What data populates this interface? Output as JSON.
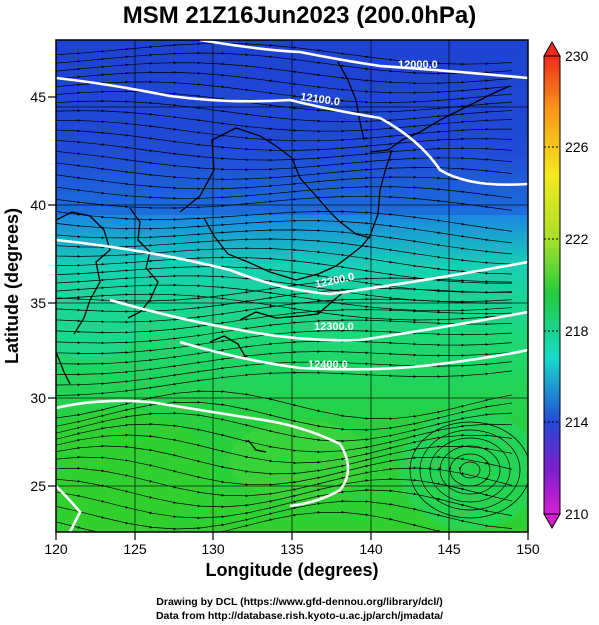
{
  "title": "MSM 21Z16Jun2023 (200.0hPa)",
  "axes": {
    "xlabel": "Longitude (degrees)",
    "ylabel": "Latitude  (degrees)",
    "xticks": [
      "120",
      "125",
      "130",
      "135",
      "140",
      "145",
      "150"
    ],
    "yticks": [
      "45",
      "40",
      "35",
      "30",
      "25"
    ]
  },
  "colorbar": {
    "min": 210,
    "max": 230,
    "labels": [
      "230",
      "226",
      "222",
      "218",
      "214",
      "210"
    ],
    "colors": {
      "magenta": "#d41fd0",
      "purple": "#7a1fcf",
      "blue": "#2448d8",
      "cyan": "#18d8c8",
      "green": "#22cc40",
      "yellowgreen": "#a8e02a",
      "yellow": "#f4e81e",
      "orange": "#f89a1a",
      "red": "#ee2a1a"
    }
  },
  "contours": {
    "color": "#ffffff",
    "labels": [
      "12000.0",
      "12100.0",
      "12200.0",
      "12300.0",
      "12400.0"
    ]
  },
  "credits": {
    "line1": "Drawing by DCL (https://www.gfd-dennou.org/library/dcl/)",
    "line2": "Data from http://database.rish.kyoto-u.ac.jp/arch/jmadata/"
  }
}
